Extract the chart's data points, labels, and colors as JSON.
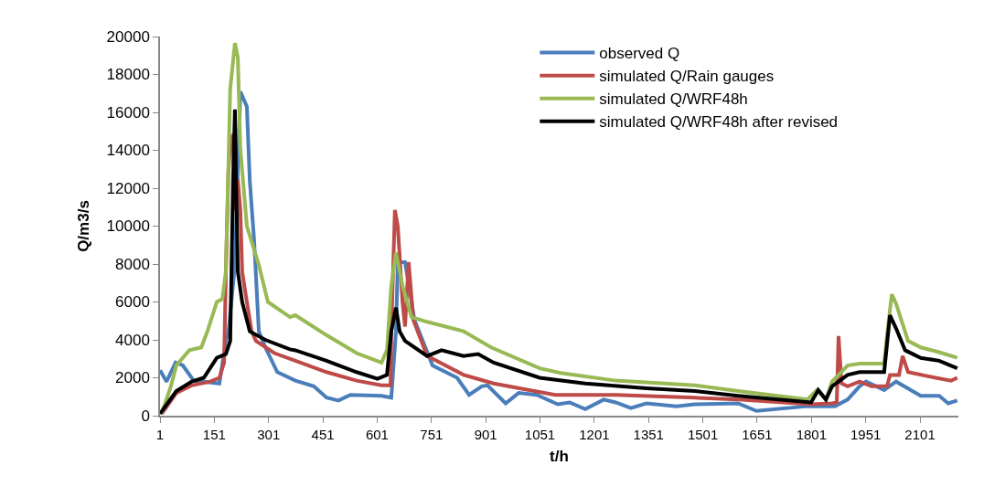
{
  "chart_data": {
    "type": "line",
    "xlabel": "t/h",
    "ylabel": "Q/m3/s",
    "xlim": [
      1,
      2207
    ],
    "xticks": [
      1,
      151,
      301,
      451,
      601,
      751,
      901,
      1051,
      1201,
      1351,
      1501,
      1651,
      1801,
      1951,
      2101
    ],
    "ylim": [
      0,
      20000
    ],
    "yticks": [
      0,
      2000,
      4000,
      6000,
      8000,
      10000,
      12000,
      14000,
      16000,
      18000,
      20000
    ],
    "grid": false,
    "legend": "top right",
    "marker": "none",
    "line_style": "solid",
    "series": [
      {
        "name": "observed Q",
        "color": "#4a7ebb",
        "x": [
          1,
          19,
          44,
          64,
          94,
          165,
          183,
          190,
          208,
          223,
          241,
          249,
          261,
          274,
          292,
          325,
          375,
          426,
          461,
          494,
          527,
          613,
          640,
          653,
          658,
          678,
          704,
          754,
          822,
          855,
          890,
          906,
          956,
          992,
          1042,
          1100,
          1133,
          1176,
          1227,
          1260,
          1302,
          1345,
          1428,
          1479,
          1598,
          1649,
          1790,
          1866,
          1901,
          1934,
          1952,
          2002,
          2035,
          2103,
          2154,
          2179,
          2204
        ],
        "values": [
          2400,
          1800,
          2800,
          2650,
          1850,
          1700,
          3950,
          4400,
          7950,
          17100,
          16300,
          12400,
          9250,
          4450,
          3600,
          2300,
          1850,
          1550,
          950,
          800,
          1100,
          1050,
          950,
          4450,
          8100,
          8100,
          5050,
          2650,
          2000,
          1100,
          1550,
          1600,
          650,
          1200,
          1100,
          600,
          700,
          350,
          850,
          700,
          400,
          650,
          500,
          600,
          650,
          250,
          500,
          500,
          850,
          1550,
          1800,
          1350,
          1800,
          1050,
          1050,
          650,
          800
        ]
      },
      {
        "name": "simulated Q/Rain gauges",
        "color": "#be4b48",
        "x": [
          6,
          46,
          89,
          140,
          165,
          178,
          183,
          190,
          195,
          203,
          208,
          216,
          223,
          228,
          241,
          254,
          266,
          317,
          375,
          461,
          544,
          613,
          638,
          640,
          650,
          658,
          671,
          678,
          688,
          701,
          739,
          840,
          923,
          1093,
          1260,
          1479,
          1598,
          1800,
          1858,
          1871,
          1876,
          1884,
          1901,
          1934,
          1967,
          2010,
          2018,
          2043,
          2053,
          2068,
          2144,
          2187,
          2204
        ],
        "values": [
          100,
          1200,
          1600,
          1800,
          2000,
          2800,
          7600,
          12900,
          14350,
          14850,
          10850,
          12450,
          10850,
          7600,
          6000,
          4450,
          3950,
          3300,
          2900,
          2300,
          1850,
          1600,
          1600,
          4450,
          10850,
          10000,
          6000,
          4700,
          8100,
          5050,
          3150,
          2150,
          1700,
          1100,
          1100,
          950,
          850,
          600,
          650,
          700,
          4200,
          1700,
          1550,
          1800,
          1550,
          1550,
          2150,
          2150,
          3150,
          2300,
          2000,
          1850,
          2000
        ]
      },
      {
        "name": "simulated Q/WRF48h",
        "color": "#98b954",
        "x": [
          6,
          31,
          46,
          82,
          115,
          132,
          158,
          173,
          183,
          195,
          208,
          216,
          223,
          241,
          274,
          299,
          360,
          375,
          461,
          544,
          613,
          628,
          640,
          653,
          671,
          696,
          739,
          840,
          916,
          1050,
          1108,
          1260,
          1479,
          1598,
          1790,
          1816,
          1841,
          1858,
          1901,
          1934,
          2002,
          2010,
          2023,
          2035,
          2068,
          2103,
          2154,
          2204
        ],
        "values": [
          150,
          1550,
          2650,
          3450,
          3600,
          4450,
          6000,
          6150,
          7600,
          17250,
          19650,
          18900,
          14050,
          10000,
          7950,
          6000,
          5200,
          5300,
          4250,
          3300,
          2800,
          3450,
          6850,
          8600,
          6850,
          5200,
          4950,
          4450,
          3600,
          2500,
          2250,
          1850,
          1600,
          1300,
          850,
          1350,
          850,
          1800,
          2650,
          2750,
          2750,
          4250,
          6400,
          5900,
          3950,
          3600,
          3350,
          3050
        ]
      },
      {
        "name": "simulated Q/WRF48h after revised",
        "color": "#000000",
        "x": [
          1,
          46,
          89,
          122,
          158,
          183,
          195,
          203,
          208,
          211,
          216,
          228,
          249,
          292,
          360,
          375,
          461,
          544,
          602,
          628,
          640,
          653,
          663,
          678,
          739,
          779,
          840,
          880,
          923,
          1050,
          1176,
          1345,
          1479,
          1598,
          1800,
          1820,
          1841,
          1858,
          1901,
          1934,
          2002,
          2018,
          2035,
          2060,
          2103,
          2154,
          2204
        ],
        "values": [
          100,
          1300,
          1800,
          2000,
          3050,
          3250,
          3950,
          12450,
          16150,
          12450,
          7600,
          6000,
          4450,
          4000,
          3500,
          3450,
          2900,
          2300,
          1950,
          2150,
          4450,
          5700,
          4450,
          3950,
          3150,
          3450,
          3150,
          3250,
          2800,
          2000,
          1700,
          1450,
          1300,
          1050,
          700,
          1350,
          850,
          1550,
          2150,
          2300,
          2300,
          5300,
          4600,
          3450,
          3050,
          2900,
          2500
        ]
      }
    ]
  }
}
